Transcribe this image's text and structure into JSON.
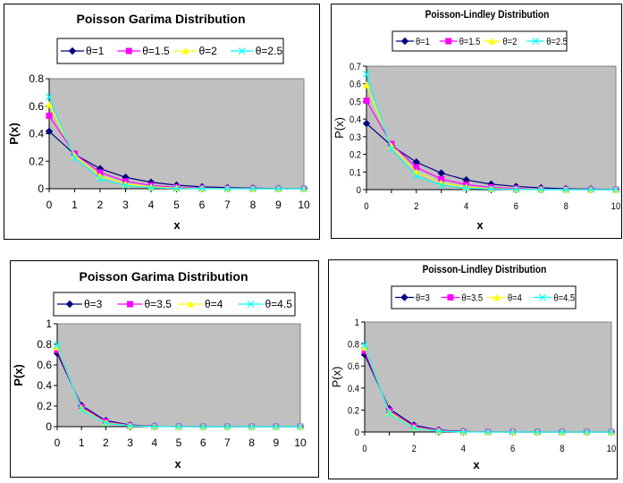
{
  "colors": {
    "plot_bg": "#c0c0c0",
    "series": [
      "#000080",
      "#ff00ff",
      "#ffff00",
      "#00ffff"
    ],
    "markers": [
      "diamond",
      "square",
      "triangle",
      "x"
    ]
  },
  "chart_data": [
    {
      "type": "line",
      "title": "Poisson Garima Distribution",
      "xlabel": "x",
      "ylabel": "P(x)",
      "x": [
        0,
        1,
        2,
        3,
        4,
        5,
        6,
        7,
        8,
        9,
        10
      ],
      "xticks": [
        "0",
        "1",
        "2",
        "3",
        "4",
        "5",
        "6",
        "7",
        "8",
        "9",
        "10"
      ],
      "ylim": [
        0,
        0.8
      ],
      "yticks": [
        "0",
        "0.2",
        "0.4",
        "0.6",
        "0.8"
      ],
      "legend_position": "top",
      "grid": false,
      "series": [
        {
          "name": "θ=1",
          "values": [
            0.417,
            0.25,
            0.146,
            0.083,
            0.047,
            0.026,
            0.014,
            0.008,
            0.004,
            0.002,
            0.001
          ]
        },
        {
          "name": "θ=1.5",
          "values": [
            0.531,
            0.254,
            0.118,
            0.054,
            0.024,
            0.011,
            0.005,
            0.002,
            0.001,
            0.0,
            0.0
          ]
        },
        {
          "name": "θ=2",
          "values": [
            0.611,
            0.241,
            0.093,
            0.035,
            0.013,
            0.005,
            0.002,
            0.001,
            0.0,
            0.0,
            0.0
          ]
        },
        {
          "name": "θ=2.5",
          "values": [
            0.669,
            0.224,
            0.073,
            0.024,
            0.007,
            0.002,
            0.001,
            0.0,
            0.0,
            0.0,
            0.0
          ]
        }
      ]
    },
    {
      "type": "line",
      "title": "Poisson-Lindley Distribution",
      "xlabel": "x",
      "ylabel": "P(x)",
      "x": [
        0,
        1,
        2,
        3,
        4,
        5,
        6,
        7,
        8,
        9,
        10
      ],
      "xticks": [
        "0",
        "2",
        "4",
        "6",
        "8",
        "10"
      ],
      "ylim": [
        0,
        0.7
      ],
      "yticks": [
        "0",
        "0.1",
        "0.2",
        "0.3",
        "0.4",
        "0.5",
        "0.6",
        "0.7"
      ],
      "legend_position": "top",
      "grid": false,
      "series": [
        {
          "name": "θ=1",
          "values": [
            0.375,
            0.25,
            0.156,
            0.094,
            0.055,
            0.031,
            0.018,
            0.01,
            0.005,
            0.003,
            0.001
          ]
        },
        {
          "name": "θ=1.5",
          "values": [
            0.504,
            0.259,
            0.127,
            0.06,
            0.028,
            0.013,
            0.006,
            0.002,
            0.001,
            0.0,
            0.0
          ]
        },
        {
          "name": "θ=2",
          "values": [
            0.593,
            0.247,
            0.099,
            0.038,
            0.015,
            0.005,
            0.002,
            0.001,
            0.0,
            0.0,
            0.0
          ]
        },
        {
          "name": "θ=2.5",
          "values": [
            0.656,
            0.229,
            0.077,
            0.025,
            0.008,
            0.003,
            0.001,
            0.0,
            0.0,
            0.0,
            0.0
          ]
        }
      ]
    },
    {
      "type": "line",
      "title": "Poisson Garima Distribution",
      "xlabel": "x",
      "ylabel": "P(x)",
      "x": [
        0,
        1,
        2,
        3,
        4,
        5,
        6,
        7,
        8,
        9,
        10
      ],
      "xticks": [
        "0",
        "1",
        "2",
        "3",
        "4",
        "5",
        "6",
        "7",
        "8",
        "9",
        "10"
      ],
      "ylim": [
        0,
        1
      ],
      "yticks": [
        "0",
        "0.2",
        "0.4",
        "0.6",
        "0.8",
        "1"
      ],
      "legend_position": "top",
      "grid": false,
      "series": [
        {
          "name": "θ=3",
          "values": [
            0.713,
            0.206,
            0.059,
            0.016,
            0.005,
            0.001,
            0.0,
            0.0,
            0.0,
            0.0,
            0.0
          ]
        },
        {
          "name": "θ=3.5",
          "values": [
            0.746,
            0.19,
            0.048,
            0.012,
            0.003,
            0.001,
            0.0,
            0.0,
            0.0,
            0.0,
            0.0
          ]
        },
        {
          "name": "θ=4",
          "values": [
            0.773,
            0.176,
            0.039,
            0.009,
            0.002,
            0.0,
            0.0,
            0.0,
            0.0,
            0.0,
            0.0
          ]
        },
        {
          "name": "θ=4.5",
          "values": [
            0.795,
            0.163,
            0.033,
            0.007,
            0.001,
            0.0,
            0.0,
            0.0,
            0.0,
            0.0,
            0.0
          ]
        }
      ]
    },
    {
      "type": "line",
      "title": "Poisson-Lindley Distribution",
      "xlabel": "x",
      "ylabel": "P(x)",
      "x": [
        0,
        1,
        2,
        3,
        4,
        5,
        6,
        7,
        8,
        9,
        10
      ],
      "xticks": [
        "0",
        "2",
        "4",
        "6",
        "8",
        "10"
      ],
      "ylim": [
        0,
        1
      ],
      "yticks": [
        "0",
        "0.2",
        "0.4",
        "0.6",
        "0.8",
        "1"
      ],
      "legend_position": "top",
      "grid": false,
      "series": [
        {
          "name": "θ=3",
          "values": [
            0.703,
            0.211,
            0.062,
            0.018,
            0.005,
            0.001,
            0.0,
            0.0,
            0.0,
            0.0,
            0.0
          ]
        },
        {
          "name": "θ=3.5",
          "values": [
            0.739,
            0.194,
            0.05,
            0.013,
            0.003,
            0.001,
            0.0,
            0.0,
            0.0,
            0.0,
            0.0
          ]
        },
        {
          "name": "θ=4",
          "values": [
            0.768,
            0.179,
            0.041,
            0.009,
            0.002,
            0.0,
            0.0,
            0.0,
            0.0,
            0.0,
            0.0
          ]
        },
        {
          "name": "θ=4.5",
          "values": [
            0.791,
            0.166,
            0.034,
            0.007,
            0.001,
            0.0,
            0.0,
            0.0,
            0.0,
            0.0,
            0.0
          ]
        }
      ]
    }
  ]
}
